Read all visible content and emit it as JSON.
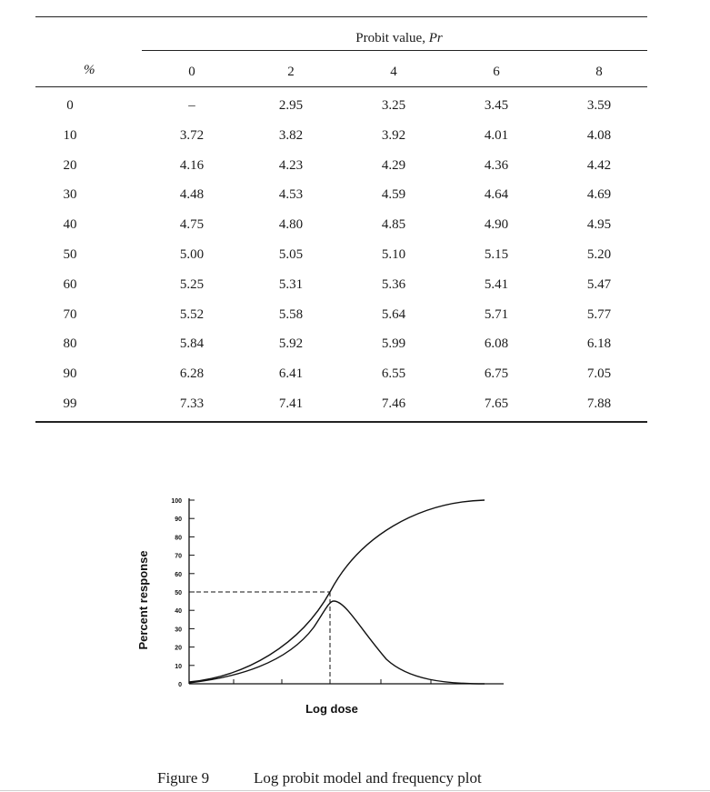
{
  "table": {
    "super_header_prefix": "Probit value, ",
    "super_header_italic": "Pr",
    "row_header": "%",
    "columns": [
      "0",
      "2",
      "4",
      "6",
      "8"
    ],
    "rows": [
      {
        "pct": "0",
        "values": [
          "–",
          "2.95",
          "3.25",
          "3.45",
          "3.59"
        ]
      },
      {
        "pct": "10",
        "values": [
          "3.72",
          "3.82",
          "3.92",
          "4.01",
          "4.08"
        ]
      },
      {
        "pct": "20",
        "values": [
          "4.16",
          "4.23",
          "4.29",
          "4.36",
          "4.42"
        ]
      },
      {
        "pct": "30",
        "values": [
          "4.48",
          "4.53",
          "4.59",
          "4.64",
          "4.69"
        ]
      },
      {
        "pct": "40",
        "values": [
          "4.75",
          "4.80",
          "4.85",
          "4.90",
          "4.95"
        ]
      },
      {
        "pct": "50",
        "values": [
          "5.00",
          "5.05",
          "5.10",
          "5.15",
          "5.20"
        ]
      },
      {
        "pct": "60",
        "values": [
          "5.25",
          "5.31",
          "5.36",
          "5.41",
          "5.47"
        ]
      },
      {
        "pct": "70",
        "values": [
          "5.52",
          "5.58",
          "5.64",
          "5.71",
          "5.77"
        ]
      },
      {
        "pct": "80",
        "values": [
          "5.84",
          "5.92",
          "5.99",
          "6.08",
          "6.18"
        ]
      },
      {
        "pct": "90",
        "values": [
          "6.28",
          "6.41",
          "6.55",
          "6.75",
          "7.05"
        ]
      },
      {
        "pct": "99",
        "values": [
          "7.33",
          "7.41",
          "7.46",
          "7.65",
          "7.88"
        ]
      }
    ]
  },
  "figure": {
    "ylabel": "Percent response",
    "xlabel": "Log dose",
    "yticks": [
      "0",
      "10",
      "20",
      "30",
      "40",
      "50",
      "60",
      "70",
      "80",
      "90",
      "100"
    ],
    "dashed_level": 50,
    "caption_number": "Figure 9",
    "caption_text": "Log probit model and frequency plot"
  }
}
